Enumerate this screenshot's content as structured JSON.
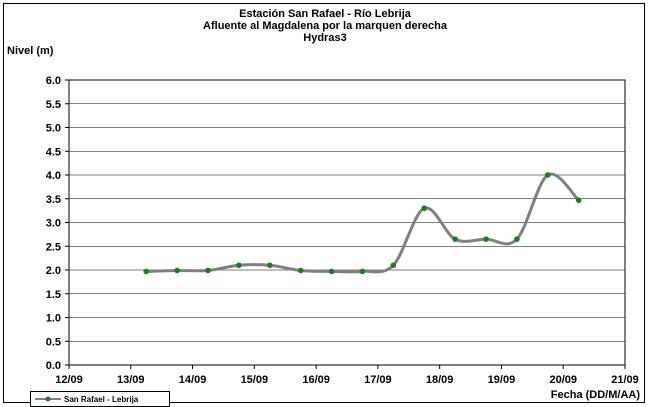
{
  "chart_data": {
    "type": "line",
    "title": [
      "Estación San Rafael - Río Lebrija",
      "Afluente al Magdalena por la marquen derecha",
      "Hydras3"
    ],
    "ylabel": "Nivel (m)",
    "xlabel": "Fecha (DD/M/AA)",
    "ylim": [
      0.0,
      6.0
    ],
    "xlim": [
      0,
      9
    ],
    "grid": true,
    "legend_position": "bottom-left",
    "x_tick_labels": [
      "12/09",
      "13/09",
      "14/09",
      "15/09",
      "16/09",
      "17/09",
      "18/09",
      "19/09",
      "20/09",
      "21/09"
    ],
    "y_tick_labels": [
      "0.0",
      "0.5",
      "1.0",
      "1.5",
      "2.0",
      "2.5",
      "3.0",
      "3.5",
      "4.0",
      "4.5",
      "5.0",
      "5.5",
      "6.0"
    ],
    "series": [
      {
        "name": "San Rafael  - Lebrija",
        "line_color": "#808080",
        "marker_color": "#1a7f1a",
        "x": [
          1.25,
          1.75,
          2.25,
          2.75,
          3.25,
          3.75,
          4.25,
          4.75,
          5.25,
          5.75,
          6.25,
          6.75,
          7.25,
          7.75,
          8.25
        ],
        "y": [
          1.97,
          1.99,
          1.99,
          2.1,
          2.1,
          1.99,
          1.97,
          1.97,
          2.1,
          3.3,
          2.65,
          2.65,
          2.65,
          4.0,
          3.47
        ]
      }
    ]
  }
}
